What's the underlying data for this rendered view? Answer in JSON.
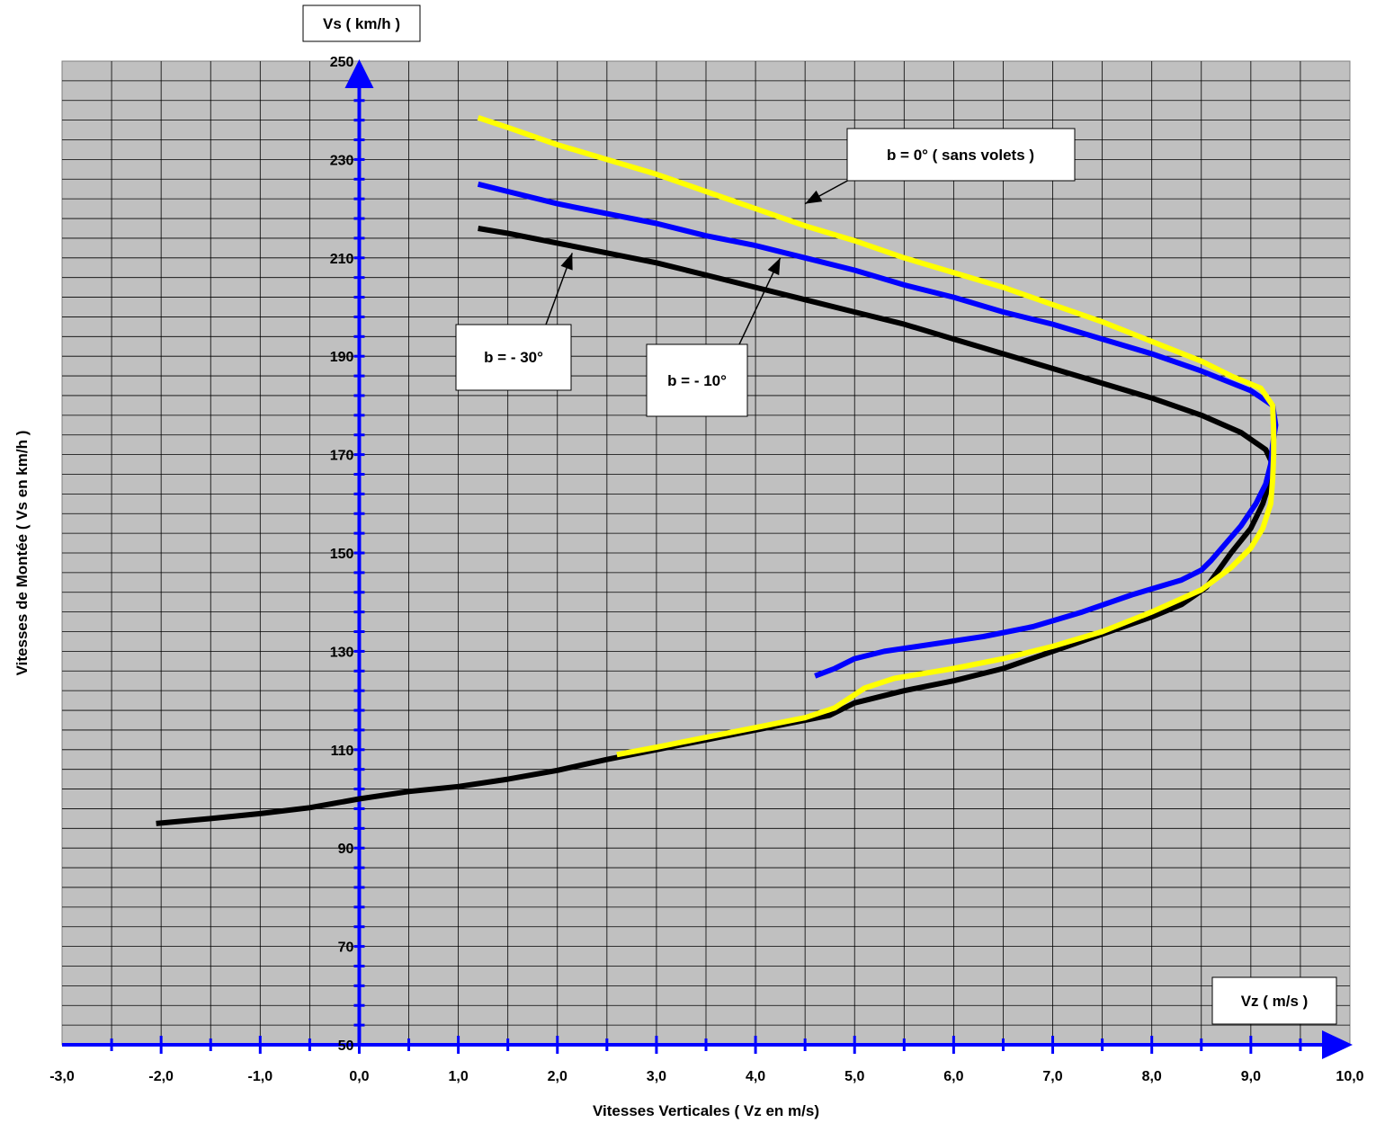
{
  "chart_data": {
    "type": "line",
    "xlabel": "Vitesses Verticales ( Vz en m/s)",
    "ylabel": "Vitesses de Montée ( Vs en km/h )",
    "y_axis_box_label": "Vs ( km/h )",
    "x_axis_box_label": "Vz ( m/s )",
    "xlim": [
      -3.0,
      10.0
    ],
    "ylim": [
      50,
      250
    ],
    "x_ticks": [
      "-3,0",
      "-2,0",
      "-1,0",
      "0,0",
      "1,0",
      "2,0",
      "3,0",
      "4,0",
      "5,0",
      "6,0",
      "7,0",
      "8,0",
      "9,0",
      "10,0"
    ],
    "y_ticks": [
      "50",
      "70",
      "90",
      "110",
      "130",
      "150",
      "170",
      "190",
      "210",
      "230",
      "250"
    ],
    "grid": true,
    "plot_background": "#c0c0c0",
    "axis_color": "#0000ff",
    "series": [
      {
        "name": "b = - 30°",
        "color": "#000000",
        "points": [
          [
            -2.05,
            95
          ],
          [
            -1.5,
            96
          ],
          [
            -1.0,
            97
          ],
          [
            -0.5,
            98.2
          ],
          [
            0.0,
            100
          ],
          [
            0.5,
            101.5
          ],
          [
            1.0,
            102.5
          ],
          [
            1.5,
            104
          ],
          [
            2.0,
            105.8
          ],
          [
            2.5,
            108
          ],
          [
            3.0,
            110
          ],
          [
            3.5,
            112
          ],
          [
            4.0,
            114
          ],
          [
            4.5,
            116
          ],
          [
            4.75,
            117
          ],
          [
            5.0,
            119.5
          ],
          [
            5.5,
            122
          ],
          [
            6.0,
            124
          ],
          [
            6.5,
            126.5
          ],
          [
            7.0,
            130
          ],
          [
            7.5,
            133.5
          ],
          [
            8.0,
            137
          ],
          [
            8.3,
            139.5
          ],
          [
            8.55,
            143
          ],
          [
            8.8,
            150
          ],
          [
            9.0,
            155
          ],
          [
            9.12,
            160
          ],
          [
            9.2,
            165
          ],
          [
            9.22,
            168
          ],
          [
            9.15,
            171
          ],
          [
            8.9,
            174.5
          ],
          [
            8.5,
            178
          ],
          [
            8.0,
            181.5
          ],
          [
            7.5,
            184.5
          ],
          [
            7.0,
            187.5
          ],
          [
            6.5,
            190.5
          ],
          [
            6.0,
            193.5
          ],
          [
            5.5,
            196.5
          ],
          [
            5.0,
            199
          ],
          [
            4.5,
            201.5
          ],
          [
            4.0,
            204
          ],
          [
            3.5,
            206.5
          ],
          [
            3.0,
            209
          ],
          [
            2.5,
            211
          ],
          [
            2.0,
            213
          ],
          [
            1.5,
            215
          ],
          [
            1.2,
            216
          ]
        ]
      },
      {
        "name": "b = - 10°",
        "color": "#0000ff",
        "points": [
          [
            4.6,
            125
          ],
          [
            4.8,
            126.5
          ],
          [
            5.0,
            128.5
          ],
          [
            5.3,
            130
          ],
          [
            5.8,
            131.5
          ],
          [
            6.3,
            133
          ],
          [
            6.8,
            135
          ],
          [
            7.3,
            138
          ],
          [
            7.8,
            141.5
          ],
          [
            8.3,
            144.5
          ],
          [
            8.5,
            146.5
          ],
          [
            8.6,
            148.5
          ],
          [
            8.75,
            152
          ],
          [
            8.9,
            155.5
          ],
          [
            9.05,
            160
          ],
          [
            9.15,
            164
          ],
          [
            9.2,
            168
          ],
          [
            9.22,
            172
          ],
          [
            9.25,
            176
          ],
          [
            9.22,
            180
          ],
          [
            9.0,
            183
          ],
          [
            8.5,
            187
          ],
          [
            8.0,
            190.5
          ],
          [
            7.5,
            193.5
          ],
          [
            7.0,
            196.5
          ],
          [
            6.5,
            199
          ],
          [
            6.0,
            202
          ],
          [
            5.5,
            204.5
          ],
          [
            5.0,
            207.5
          ],
          [
            4.5,
            210
          ],
          [
            4.0,
            212.5
          ],
          [
            3.5,
            214.5
          ],
          [
            3.0,
            217
          ],
          [
            2.5,
            219
          ],
          [
            2.0,
            221
          ],
          [
            1.5,
            223.5
          ],
          [
            1.2,
            225
          ]
        ]
      },
      {
        "name": "b = 0° ( sans volets )",
        "color": "#ffff00",
        "points": [
          [
            2.6,
            109
          ],
          [
            3.0,
            110.5
          ],
          [
            3.5,
            112.5
          ],
          [
            4.0,
            114.5
          ],
          [
            4.5,
            116.5
          ],
          [
            4.8,
            118.5
          ],
          [
            4.95,
            120.5
          ],
          [
            5.1,
            122.5
          ],
          [
            5.4,
            124.5
          ],
          [
            6.0,
            126.5
          ],
          [
            6.5,
            128.5
          ],
          [
            7.0,
            131
          ],
          [
            7.5,
            134
          ],
          [
            8.0,
            138
          ],
          [
            8.5,
            142.5
          ],
          [
            8.8,
            147
          ],
          [
            9.0,
            151
          ],
          [
            9.12,
            155
          ],
          [
            9.2,
            160
          ],
          [
            9.22,
            165
          ],
          [
            9.23,
            170
          ],
          [
            9.23,
            175
          ],
          [
            9.22,
            180
          ],
          [
            9.1,
            183.5
          ],
          [
            8.8,
            186
          ],
          [
            8.5,
            189
          ],
          [
            8.0,
            193
          ],
          [
            7.5,
            197
          ],
          [
            7.0,
            200.5
          ],
          [
            6.5,
            204
          ],
          [
            6.0,
            207
          ],
          [
            5.5,
            210
          ],
          [
            5.0,
            213.5
          ],
          [
            4.5,
            216.5
          ],
          [
            4.0,
            220
          ],
          [
            3.5,
            223.5
          ],
          [
            3.0,
            227
          ],
          [
            2.5,
            230
          ],
          [
            2.0,
            233
          ],
          [
            1.5,
            236.5
          ],
          [
            1.2,
            238.5
          ]
        ]
      }
    ],
    "annotations": [
      {
        "text": "b = 0° ( sans volets )",
        "x": 4.5,
        "y": 221
      },
      {
        "text": "b = - 10°",
        "x": 4.25,
        "y": 210
      },
      {
        "text": "b = - 30°",
        "x": 2.15,
        "y": 211
      }
    ]
  }
}
